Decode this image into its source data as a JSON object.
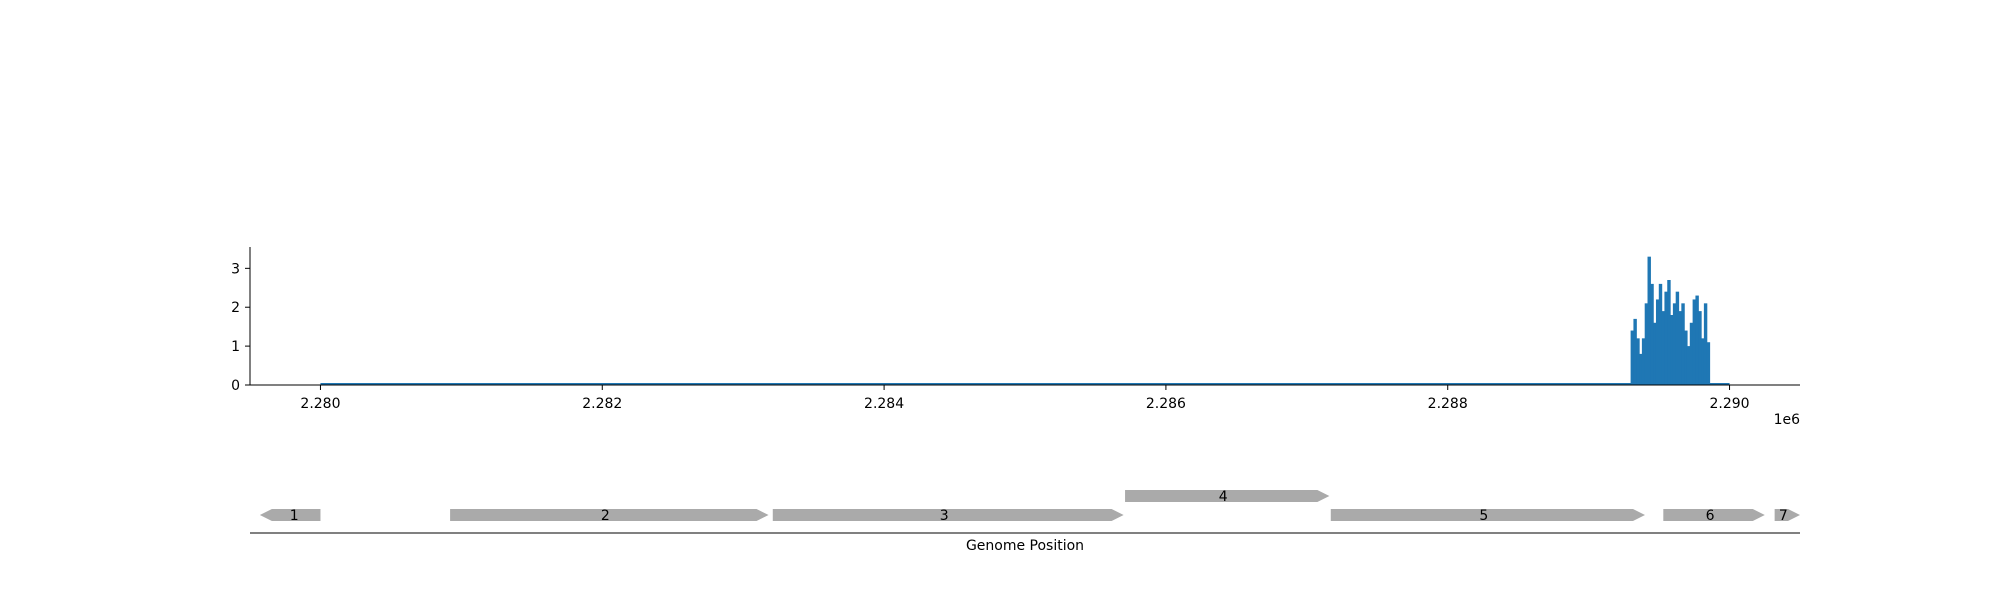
{
  "chart_data": [
    {
      "type": "area",
      "title": "",
      "xlabel": "",
      "ylabel": "",
      "xlim": [
        2279500,
        2290500
      ],
      "ylim": [
        0,
        3.6
      ],
      "x_scale_label": "1e6",
      "x_ticks": [
        2280000,
        2282000,
        2284000,
        2286000,
        2288000,
        2290000
      ],
      "x_tick_labels": [
        "2.280",
        "2.282",
        "2.284",
        "2.286",
        "2.288",
        "2.290"
      ],
      "y_ticks": [
        0,
        1,
        2,
        3
      ],
      "y_tick_labels": [
        "0",
        "1",
        "2",
        "3"
      ],
      "grid": false,
      "baseline": [
        2280000,
        2290000
      ],
      "color": "#1f77b4",
      "peaks": [
        [
          2289310,
          1.4
        ],
        [
          2289330,
          1.7
        ],
        [
          2289350,
          1.2
        ],
        [
          2289370,
          0.8
        ],
        [
          2289390,
          1.2
        ],
        [
          2289410,
          2.1
        ],
        [
          2289430,
          3.3
        ],
        [
          2289450,
          2.6
        ],
        [
          2289470,
          1.6
        ],
        [
          2289490,
          2.2
        ],
        [
          2289510,
          2.6
        ],
        [
          2289530,
          1.9
        ],
        [
          2289550,
          2.4
        ],
        [
          2289570,
          2.7
        ],
        [
          2289590,
          1.8
        ],
        [
          2289610,
          2.1
        ],
        [
          2289630,
          2.4
        ],
        [
          2289650,
          1.9
        ],
        [
          2289670,
          2.1
        ],
        [
          2289690,
          1.4
        ],
        [
          2289710,
          1.0
        ],
        [
          2289730,
          1.6
        ],
        [
          2289750,
          2.2
        ],
        [
          2289770,
          2.3
        ],
        [
          2289790,
          1.9
        ],
        [
          2289810,
          1.2
        ],
        [
          2289830,
          2.1
        ],
        [
          2289850,
          1.1
        ]
      ]
    },
    {
      "type": "gene-track",
      "xlabel": "Genome Position",
      "xlim": [
        2279500,
        2290500
      ],
      "color": "#aaaaaa",
      "genes": [
        {
          "label": "1",
          "start": 2279570,
          "end": 2280000,
          "strand": -1,
          "row": 0
        },
        {
          "label": "2",
          "start": 2280920,
          "end": 2283180,
          "strand": 1,
          "row": 0
        },
        {
          "label": "3",
          "start": 2283210,
          "end": 2285700,
          "strand": 1,
          "row": 0
        },
        {
          "label": "4",
          "start": 2285710,
          "end": 2287160,
          "strand": 1,
          "row": 1
        },
        {
          "label": "5",
          "start": 2287170,
          "end": 2289400,
          "strand": 1,
          "row": 0
        },
        {
          "label": "6",
          "start": 2289530,
          "end": 2290250,
          "strand": 1,
          "row": 0
        },
        {
          "label": "7",
          "start": 2290320,
          "end": 2290500,
          "strand": 1,
          "row": 0
        }
      ]
    }
  ]
}
